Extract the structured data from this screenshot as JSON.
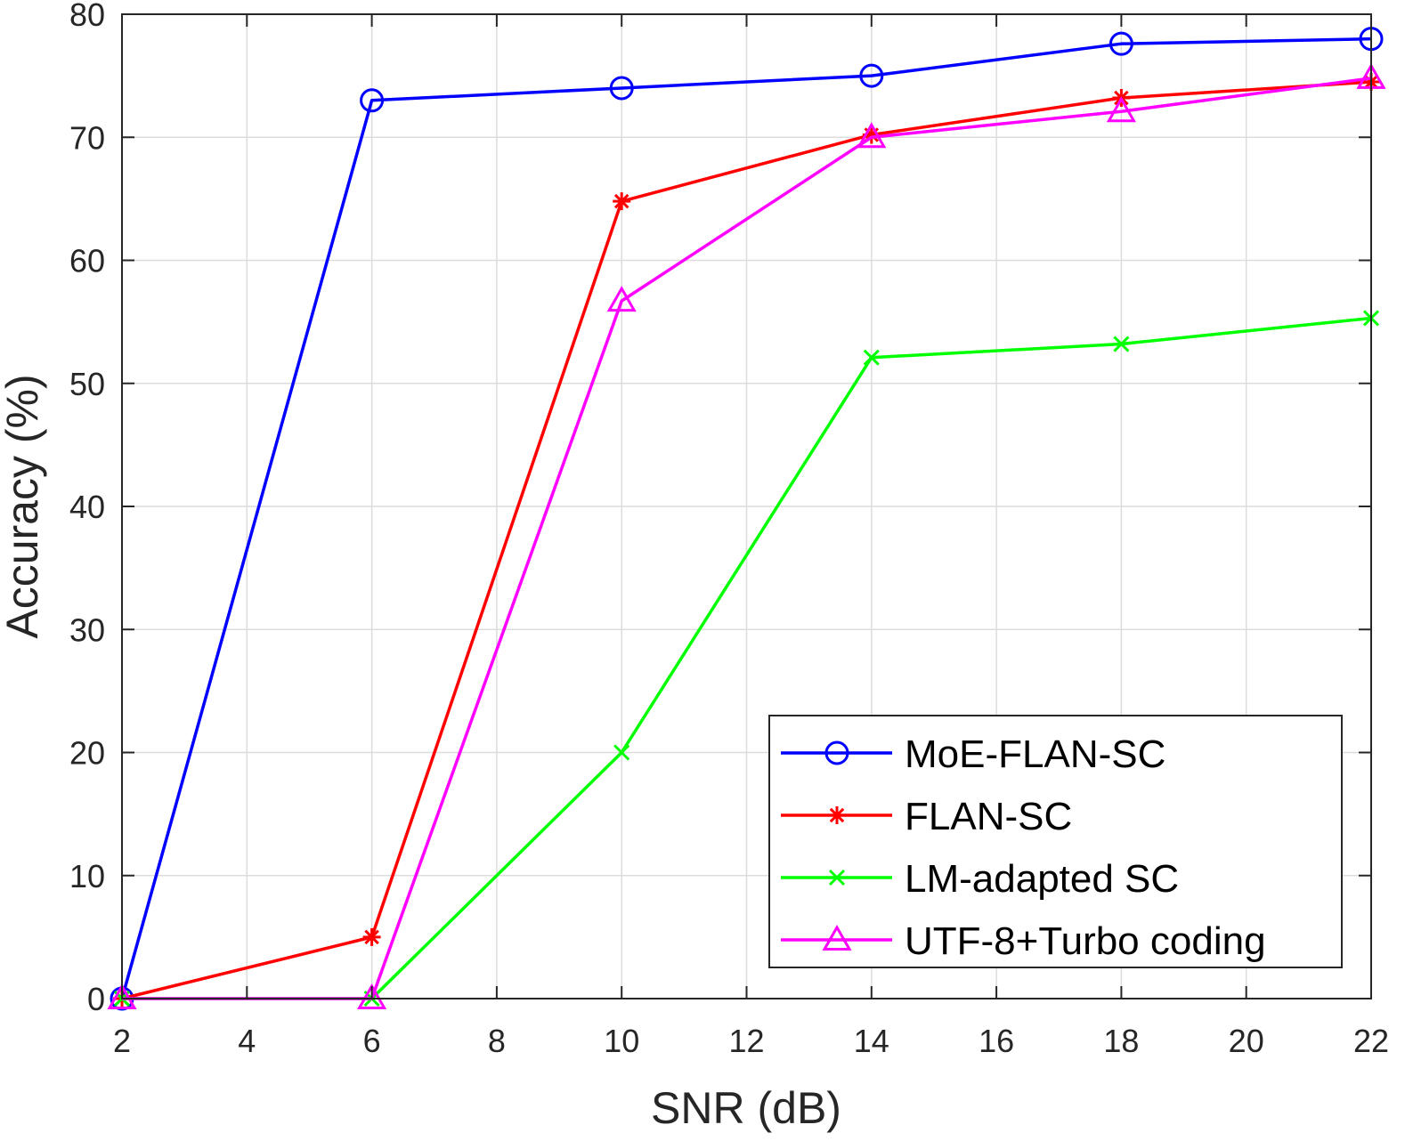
{
  "chart_data": {
    "type": "line",
    "title": "",
    "xlabel": "SNR (dB)",
    "ylabel": "Accuracy (%)",
    "xlim": [
      2,
      22
    ],
    "ylim": [
      0,
      80
    ],
    "xticks": [
      2,
      4,
      6,
      8,
      10,
      12,
      14,
      16,
      18,
      20,
      22
    ],
    "yticks": [
      0,
      10,
      20,
      30,
      40,
      50,
      60,
      70,
      80
    ],
    "grid": true,
    "legend_position": "bottom-right",
    "series": [
      {
        "name": "MoE-FLAN-SC",
        "color": "#0000ff",
        "marker": "circle",
        "x": [
          2,
          6,
          10,
          14,
          18,
          22
        ],
        "y": [
          0,
          73.0,
          74.0,
          75.0,
          77.6,
          78.0
        ]
      },
      {
        "name": "FLAN-SC",
        "color": "#ff0000",
        "marker": "asterisk",
        "x": [
          2,
          6,
          10,
          14,
          18,
          22
        ],
        "y": [
          0,
          5.0,
          64.8,
          70.2,
          73.2,
          74.5
        ]
      },
      {
        "name": "LM-adapted SC",
        "color": "#00ff00",
        "marker": "x",
        "x": [
          2,
          6,
          10,
          14,
          18,
          22
        ],
        "y": [
          0,
          0,
          20.0,
          52.1,
          53.2,
          55.3
        ]
      },
      {
        "name": "UTF-8+Turbo coding",
        "color": "#ff00ff",
        "marker": "triangle",
        "x": [
          2,
          6,
          10,
          14,
          18,
          22
        ],
        "y": [
          0,
          0,
          56.7,
          70.0,
          72.1,
          74.8
        ]
      }
    ]
  }
}
